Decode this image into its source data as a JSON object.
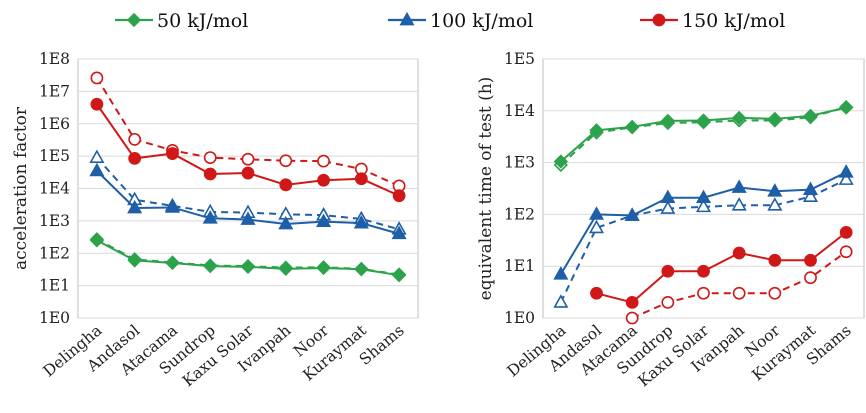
{
  "legend": {
    "items": [
      {
        "label": "50 kJ/mol",
        "color": "#2ca24a",
        "marker": "diamond"
      },
      {
        "label": "100 kJ/mol",
        "color": "#1f5fa8",
        "marker": "triangle"
      },
      {
        "label": "150 kJ/mol",
        "color": "#d01818",
        "marker": "circle"
      }
    ],
    "placement": "top"
  },
  "chart_data": [
    {
      "type": "line",
      "title": "",
      "xlabel": "",
      "ylabel": "acceleration factor",
      "yscale": "log",
      "ylim": [
        1,
        100000000
      ],
      "yticks": [
        1,
        10,
        100,
        1000,
        10000,
        100000,
        1000000,
        10000000,
        100000000
      ],
      "ytick_labels": [
        "1E0",
        "1E1",
        "1E2",
        "1E3",
        "1E4",
        "1E5",
        "1E6",
        "1E7",
        "1E8"
      ],
      "grid": "horizontal",
      "categories": [
        "Delingha",
        "Andasol",
        "Atacama",
        "Sundrop",
        "Kaxu Solar",
        "Ivanpah",
        "Noor",
        "Kuraymat",
        "Shams"
      ],
      "series": [
        {
          "name": "50 kJ/mol",
          "style": "solid",
          "marker": "diamond",
          "filled": true,
          "color": "#2ca24a",
          "values": [
            250,
            60,
            50,
            40,
            38,
            33,
            35,
            32,
            21
          ]
        },
        {
          "name": "50 kJ/mol",
          "style": "dashed",
          "marker": "diamond",
          "filled": false,
          "color": "#2ca24a",
          "values": [
            270,
            65,
            52,
            42,
            40,
            36,
            37,
            33,
            22
          ]
        },
        {
          "name": "100 kJ/mol",
          "style": "solid",
          "marker": "triangle",
          "filled": true,
          "color": "#1f5fa8",
          "values": [
            35000,
            2500,
            2600,
            1200,
            1100,
            800,
            950,
            850,
            400
          ]
        },
        {
          "name": "100 kJ/mol",
          "style": "dashed",
          "marker": "triangle",
          "filled": false,
          "color": "#1f5fa8",
          "values": [
            90000,
            4500,
            2900,
            1900,
            1800,
            1600,
            1500,
            1150,
            550
          ]
        },
        {
          "name": "150 kJ/mol",
          "style": "solid",
          "marker": "circle",
          "filled": true,
          "color": "#d01818",
          "values": [
            4000000,
            85000,
            120000,
            28000,
            30000,
            13000,
            18000,
            20000,
            6000
          ]
        },
        {
          "name": "150 kJ/mol",
          "style": "dashed",
          "marker": "circle",
          "filled": false,
          "color": "#d01818",
          "values": [
            26000000,
            330000,
            150000,
            90000,
            80000,
            72000,
            70000,
            40000,
            12000
          ]
        }
      ]
    },
    {
      "type": "line",
      "title": "",
      "xlabel": "",
      "ylabel": "equivalent time of test (h)",
      "yscale": "log",
      "ylim": [
        1,
        100000
      ],
      "yticks": [
        1,
        10,
        100,
        1000,
        10000,
        100000
      ],
      "ytick_labels": [
        "1E0",
        "1E1",
        "1E2",
        "1E3",
        "1E4",
        "1E5"
      ],
      "grid": "horizontal",
      "categories": [
        "Delingha",
        "Andasol",
        "Atacama",
        "Sundrop",
        "Kaxu Solar",
        "Ivanpah",
        "Noor",
        "Kuraymat",
        "Shams"
      ],
      "series": [
        {
          "name": "50 kJ/mol",
          "style": "solid",
          "marker": "diamond",
          "filled": true,
          "color": "#2ca24a",
          "values": [
            1050,
            4200,
            4900,
            6400,
            6500,
            7300,
            7000,
            8000,
            11500
          ]
        },
        {
          "name": "50 kJ/mol",
          "style": "dashed",
          "marker": "diamond",
          "filled": false,
          "color": "#2ca24a",
          "values": [
            900,
            3800,
            4800,
            5800,
            6000,
            6500,
            6500,
            7500,
            11800
          ]
        },
        {
          "name": "100 kJ/mol",
          "style": "solid",
          "marker": "triangle",
          "filled": true,
          "color": "#1f5fa8",
          "values": [
            7,
            100,
            95,
            210,
            210,
            330,
            280,
            300,
            650
          ]
        },
        {
          "name": "100 kJ/mol",
          "style": "dashed",
          "marker": "triangle",
          "filled": false,
          "color": "#1f5fa8",
          "values": [
            2,
            55,
            95,
            130,
            140,
            150,
            150,
            220,
            470
          ]
        },
        {
          "name": "150 kJ/mol",
          "style": "solid",
          "marker": "circle",
          "filled": true,
          "color": "#d01818",
          "values": [
            null,
            3,
            2,
            8,
            8,
            18,
            13,
            13,
            45
          ]
        },
        {
          "name": "150 kJ/mol",
          "style": "dashed",
          "marker": "circle",
          "filled": false,
          "color": "#d01818",
          "values": [
            null,
            null,
            1,
            2,
            3,
            3,
            3,
            6,
            19
          ]
        }
      ]
    }
  ]
}
